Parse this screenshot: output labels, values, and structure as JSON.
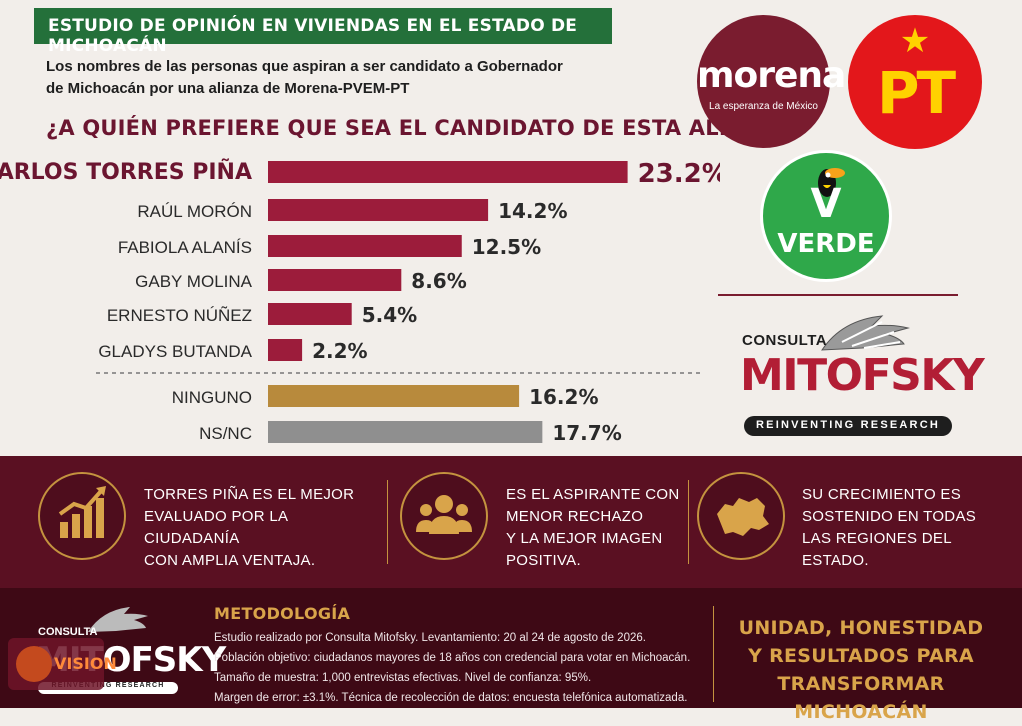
{
  "header": {
    "title": "ESTUDIO DE OPINIÓN EN VIVIENDAS EN EL ESTADO DE MICHOACÁN",
    "subtitle_line1": "Los nombres de las personas que aspiran a ser candidato a Gobernador",
    "subtitle_line2": "de Michoacán por una alianza de Morena-PVEM-PT",
    "question": "¿A QUIÉN PREFIERE QUE SEA EL CANDIDATO DE ESTA ALIANZA?"
  },
  "chart_data": {
    "type": "bar",
    "orientation": "horizontal",
    "categories": [
      "CARLOS TORRES PIÑA",
      "RAÚL MORÓN",
      "FABIOLA ALANÍS",
      "GABY MOLINA",
      "ERNESTO NÚÑEZ",
      "GLADYS BUTANDA",
      "NINGUNO",
      "NS/NC"
    ],
    "values": [
      23.2,
      14.2,
      12.5,
      8.6,
      5.4,
      2.2,
      16.2,
      17.7
    ],
    "value_labels": [
      "23.2%",
      "14.2%",
      "12.5%",
      "8.6%",
      "5.4%",
      "2.2%",
      "16.2%",
      "17.7%"
    ],
    "bar_colors": [
      "#9c1c3b",
      "#9c1c3b",
      "#9c1c3b",
      "#9c1c3b",
      "#9c1c3b",
      "#9c1c3b",
      "#b88a3c",
      "#8f8f8f"
    ],
    "highlight_index": 0,
    "separator_after_index": 5,
    "unit": "%"
  },
  "logos": {
    "morena_name": "morena",
    "morena_tagline": "La esperanza de México",
    "pt_name": "PT",
    "pt_star": "★",
    "verde_mark": "V",
    "verde_name": "VERDE",
    "mitofsky_consulta": "CONSULTA",
    "mitofsky_name": "MITOFSKY",
    "mitofsky_tagline": "REINVENTING RESEARCH"
  },
  "highlights": [
    {
      "icon": "growth-chart-icon",
      "line1": "TORRES PIÑA ES EL MEJOR",
      "line2": "EVALUADO POR LA CIUDADANÍA",
      "line3": "CON AMPLIA VENTAJA."
    },
    {
      "icon": "people-group-icon",
      "line1": "ES EL ASPIRANTE CON",
      "line2": "MENOR RECHAZO",
      "line3": "Y LA MEJOR IMAGEN",
      "line4": "POSITIVA."
    },
    {
      "icon": "michoacan-map-icon",
      "line1": "SU CRECIMIENTO ES",
      "line2": "SOSTENIDO EN TODAS",
      "line3": "LAS REGIONES DEL",
      "line4": "ESTADO."
    }
  ],
  "methodology": {
    "title": "METODOLOGÍA",
    "line1": "Estudio realizado por Consulta Mitofsky. Levantamiento: 20 al 24 de agosto de 2026.",
    "line2": "Población objetivo: ciudadanos mayores de 18 años con credencial para votar en Michoacán.",
    "line3": "Tamaño de muestra: 1,000 entrevistas efectivas. Nivel de confianza: 95%.",
    "line4": "Margen de error: ±3.1%. Técnica de recolección de datos: encuesta telefónica automatizada."
  },
  "slogan": {
    "line1": "UNIDAD, HONESTIDAD",
    "line2": "Y RESULTADOS PARA",
    "line3": "TRANSFORMAR MICHOACÁN"
  },
  "footer_logo": {
    "consulta": "CONSULTA",
    "name": "MITOFSKY",
    "tagline": "REINVENTING RESEARCH"
  },
  "watermark": {
    "text": "VISION"
  }
}
